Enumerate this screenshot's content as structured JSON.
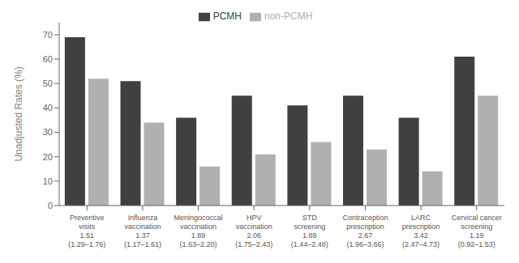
{
  "chart_data": {
    "type": "bar",
    "categories": [
      "Preventive\nvisits\n1.51\n(1.29–1.76)",
      "Influenza\nvaccination\n1.37\n(1.17–1.61)",
      "Meningococcal\nvaccination\n1.89\n(1.63–2.20)",
      "HPV\nvaccination\n2.06\n(1.75–2.43)",
      "STD\nscreening\n1.89\n(1.44–2.48)",
      "Contraception\nprescription\n2.67\n(1.96–3.66)",
      "LARC\nprescription\n3.42\n(2.47–4.73)",
      "Cervical cancer\nscreening\n1.19\n(0.92–1.53)"
    ],
    "series": [
      {
        "name": "PCMH",
        "color": "#404040",
        "values": [
          69,
          51,
          36,
          45,
          41,
          45,
          36,
          61
        ]
      },
      {
        "name": "non-PCMH",
        "color": "#b0b0b0",
        "values": [
          52,
          34,
          16,
          21,
          26,
          23,
          14,
          45
        ]
      }
    ],
    "ylabel": "Unadjusted Rates (%)",
    "ylim": [
      0,
      75
    ],
    "yticks": [
      0,
      10,
      20,
      30,
      40,
      50,
      60,
      70
    ],
    "grid": false,
    "legend": "top"
  }
}
